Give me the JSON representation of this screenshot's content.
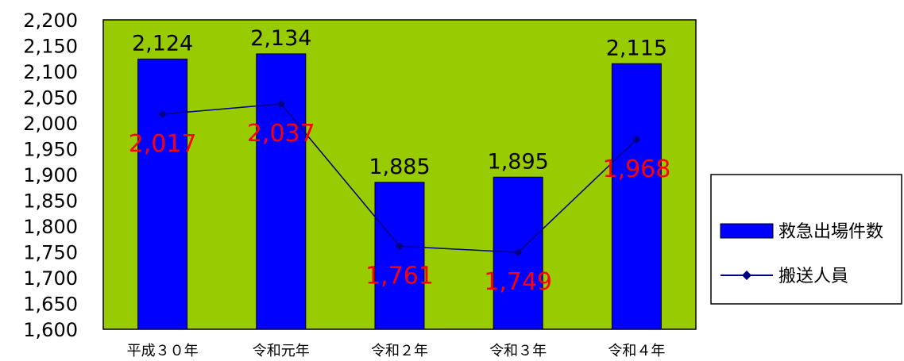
{
  "colors": {
    "plot_background": "#99cc00",
    "bar_fill": "#0000ff",
    "line": "#000080",
    "line_label": "#ff0000",
    "axis": "#000000"
  },
  "chart_data": {
    "type": "bar",
    "categories": [
      "平成３０年",
      "令和元年",
      "令和２年",
      "令和３年",
      "令和４年"
    ],
    "ylim": [
      1600,
      2200
    ],
    "yticks": [
      "2,200",
      "2,150",
      "2,100",
      "2,050",
      "2,000",
      "1,950",
      "1,900",
      "1,850",
      "1,800",
      "1,750",
      "1,700",
      "1,650",
      "1,600"
    ],
    "ytick_values": [
      2200,
      2150,
      2100,
      2050,
      2000,
      1950,
      1900,
      1850,
      1800,
      1750,
      1700,
      1650,
      1600
    ],
    "grid": false,
    "legend_position": "right",
    "series": [
      {
        "name": "救急出場件数",
        "kind": "bar",
        "values": [
          2124,
          2134,
          1885,
          1895,
          2115
        ],
        "labels": [
          "2,124",
          "2,134",
          "1,885",
          "1,895",
          "2,115"
        ]
      },
      {
        "name": "搬送人員",
        "kind": "line",
        "marker": "diamond",
        "values": [
          2017,
          2037,
          1761,
          1749,
          1968
        ],
        "labels": [
          "2,017",
          "2,037",
          "1,761",
          "1,749",
          "1,968"
        ]
      }
    ]
  }
}
